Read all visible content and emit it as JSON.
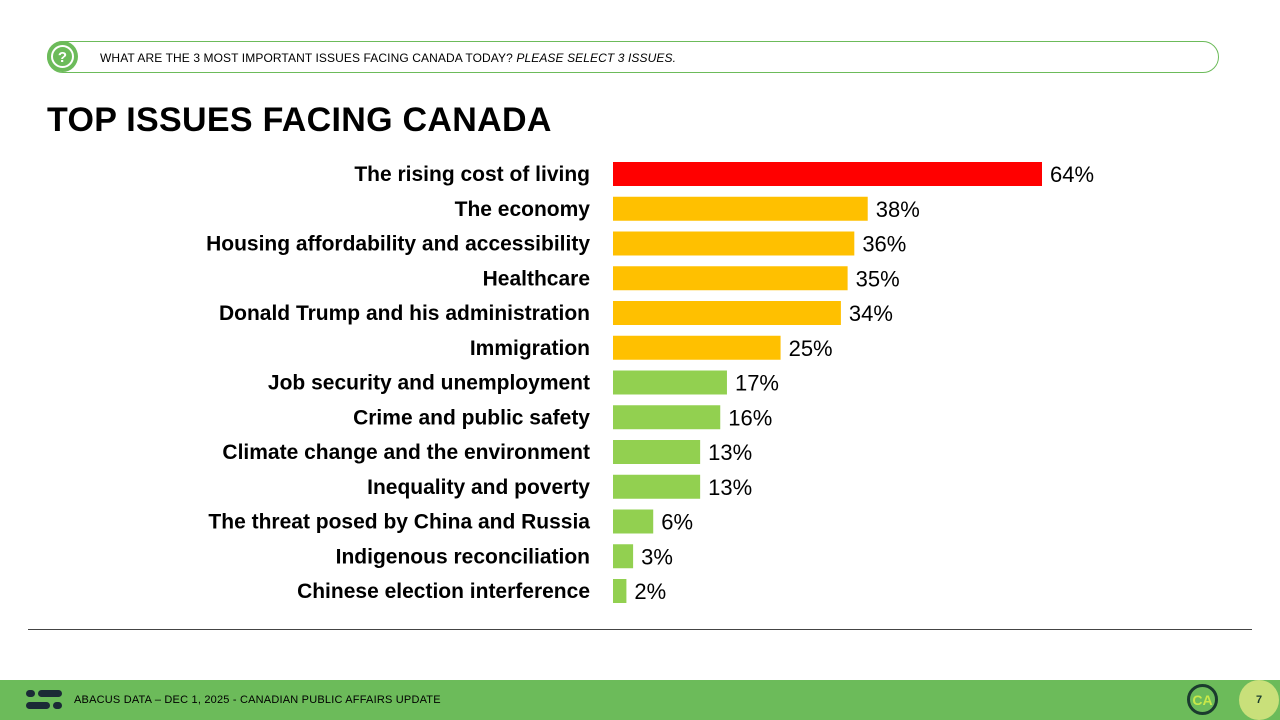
{
  "question": {
    "text": "WHAT ARE THE 3 MOST IMPORTANT ISSUES FACING CANADA TODAY?",
    "instruction": "PLEASE SELECT 3 ISSUES.",
    "icon": "question-icon"
  },
  "colors": {
    "top": "#ff0000",
    "mid": "#ffc000",
    "low": "#92d050",
    "brand_green": "#6cbb5a"
  },
  "chart_data": {
    "type": "bar",
    "orientation": "horizontal",
    "title": "TOP ISSUES FACING CANADA",
    "categories": [
      "The rising cost of living",
      "The economy",
      "Housing affordability and accessibility",
      "Healthcare",
      "Donald Trump and his administration",
      "Immigration",
      "Job security and unemployment",
      "Crime and public safety",
      "Climate change and the environment",
      "Inequality and poverty",
      "The threat posed by China and Russia",
      "Indigenous reconciliation",
      "Chinese election interference"
    ],
    "values": [
      64,
      38,
      36,
      35,
      34,
      25,
      17,
      16,
      13,
      13,
      6,
      3,
      2
    ],
    "value_labels": [
      "64%",
      "38%",
      "36%",
      "35%",
      "34%",
      "25%",
      "17%",
      "16%",
      "13%",
      "13%",
      "6%",
      "3%",
      "2%"
    ],
    "color_groups": [
      "top",
      "mid",
      "mid",
      "mid",
      "mid",
      "mid",
      "low",
      "low",
      "low",
      "low",
      "low",
      "low",
      "low"
    ],
    "xlim": [
      0,
      100
    ],
    "unit": "%",
    "grid": false,
    "legend": "none"
  },
  "footer": {
    "text": "ABACUS DATA – DEC 1, 2025 - CANADIAN PUBLIC AFFAIRS UPDATE",
    "badge": "CA",
    "page_number": "7"
  }
}
